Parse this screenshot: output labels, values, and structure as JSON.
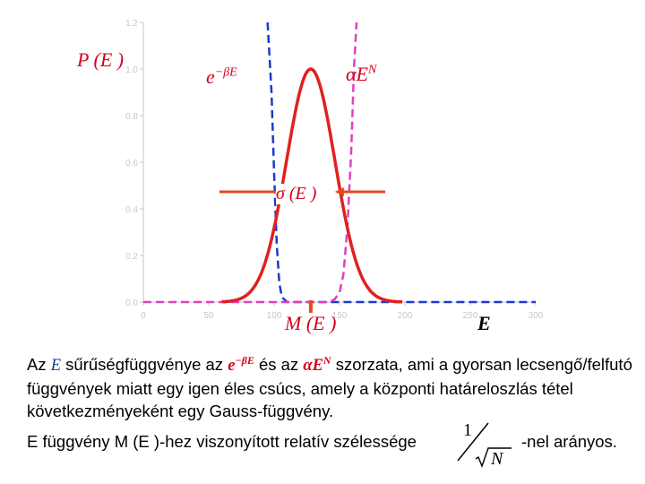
{
  "chart_data": {
    "type": "line",
    "x_range": [
      0,
      300
    ],
    "y_range": [
      0,
      1.2
    ],
    "x_ticks": [
      "0",
      "50",
      "100",
      "150",
      "200",
      "250",
      "300"
    ],
    "y_ticks": [
      "0.0",
      "0.2",
      "0.4",
      "0.6",
      "0.8",
      "1.0",
      "1.2"
    ],
    "series": [
      {
        "label": "e^{-βE}",
        "color": "#1a3ad4",
        "style": "dashed",
        "points": [
          [
            95,
            1.2
          ],
          [
            98,
            0.9
          ],
          [
            100,
            0.55
          ],
          [
            102,
            0.25
          ],
          [
            104,
            0.08
          ],
          [
            106,
            0.02
          ],
          [
            110,
            0.0
          ],
          [
            300,
            0.0
          ]
        ]
      },
      {
        "label": "αE^N",
        "color": "#e040c0",
        "style": "dashed",
        "points": [
          [
            0,
            0.0
          ],
          [
            140,
            0.0
          ],
          [
            146,
            0.01
          ],
          [
            150,
            0.04
          ],
          [
            153,
            0.12
          ],
          [
            156,
            0.32
          ],
          [
            159,
            0.65
          ],
          [
            161,
            1.0
          ],
          [
            163,
            1.2
          ]
        ]
      },
      {
        "label": "P(E)",
        "color": "#e02020",
        "style": "solid",
        "gaussian": {
          "mean": 128,
          "sigma": 18.5,
          "peak": 1.0
        }
      }
    ]
  },
  "labels": {
    "p_of_e": "P (E )",
    "exp_term": "e",
    "exp_sup": "−βE",
    "power_term": "αE",
    "power_sup": "N",
    "sigma": "σ (E )",
    "m_of_e": "M (E )",
    "e_axis": "E"
  },
  "caption": {
    "p1_a": "Az ",
    "p1_e": "E",
    "p1_b": " sűrűségfüggvénye az ",
    "p1_exp": "e",
    "p1_exp_sup": "−βE",
    "p1_c": " és az ",
    "p1_pow": "αE",
    "p1_pow_sup": "N",
    "p1_d": " szorzata, ami a gyorsan lecsengő/felfutó függvények miatt egy igen éles csúcs, amely a központi határeloszlás tétel következményeként egy Gauss-függvény.",
    "p2_a": "E függvény ",
    "p2_m": "M (E )",
    "p2_b": "-hez viszonyított relatív szélessége",
    "frac_num": "1",
    "frac_den": "N",
    "p2_c": "-nel arányos."
  }
}
